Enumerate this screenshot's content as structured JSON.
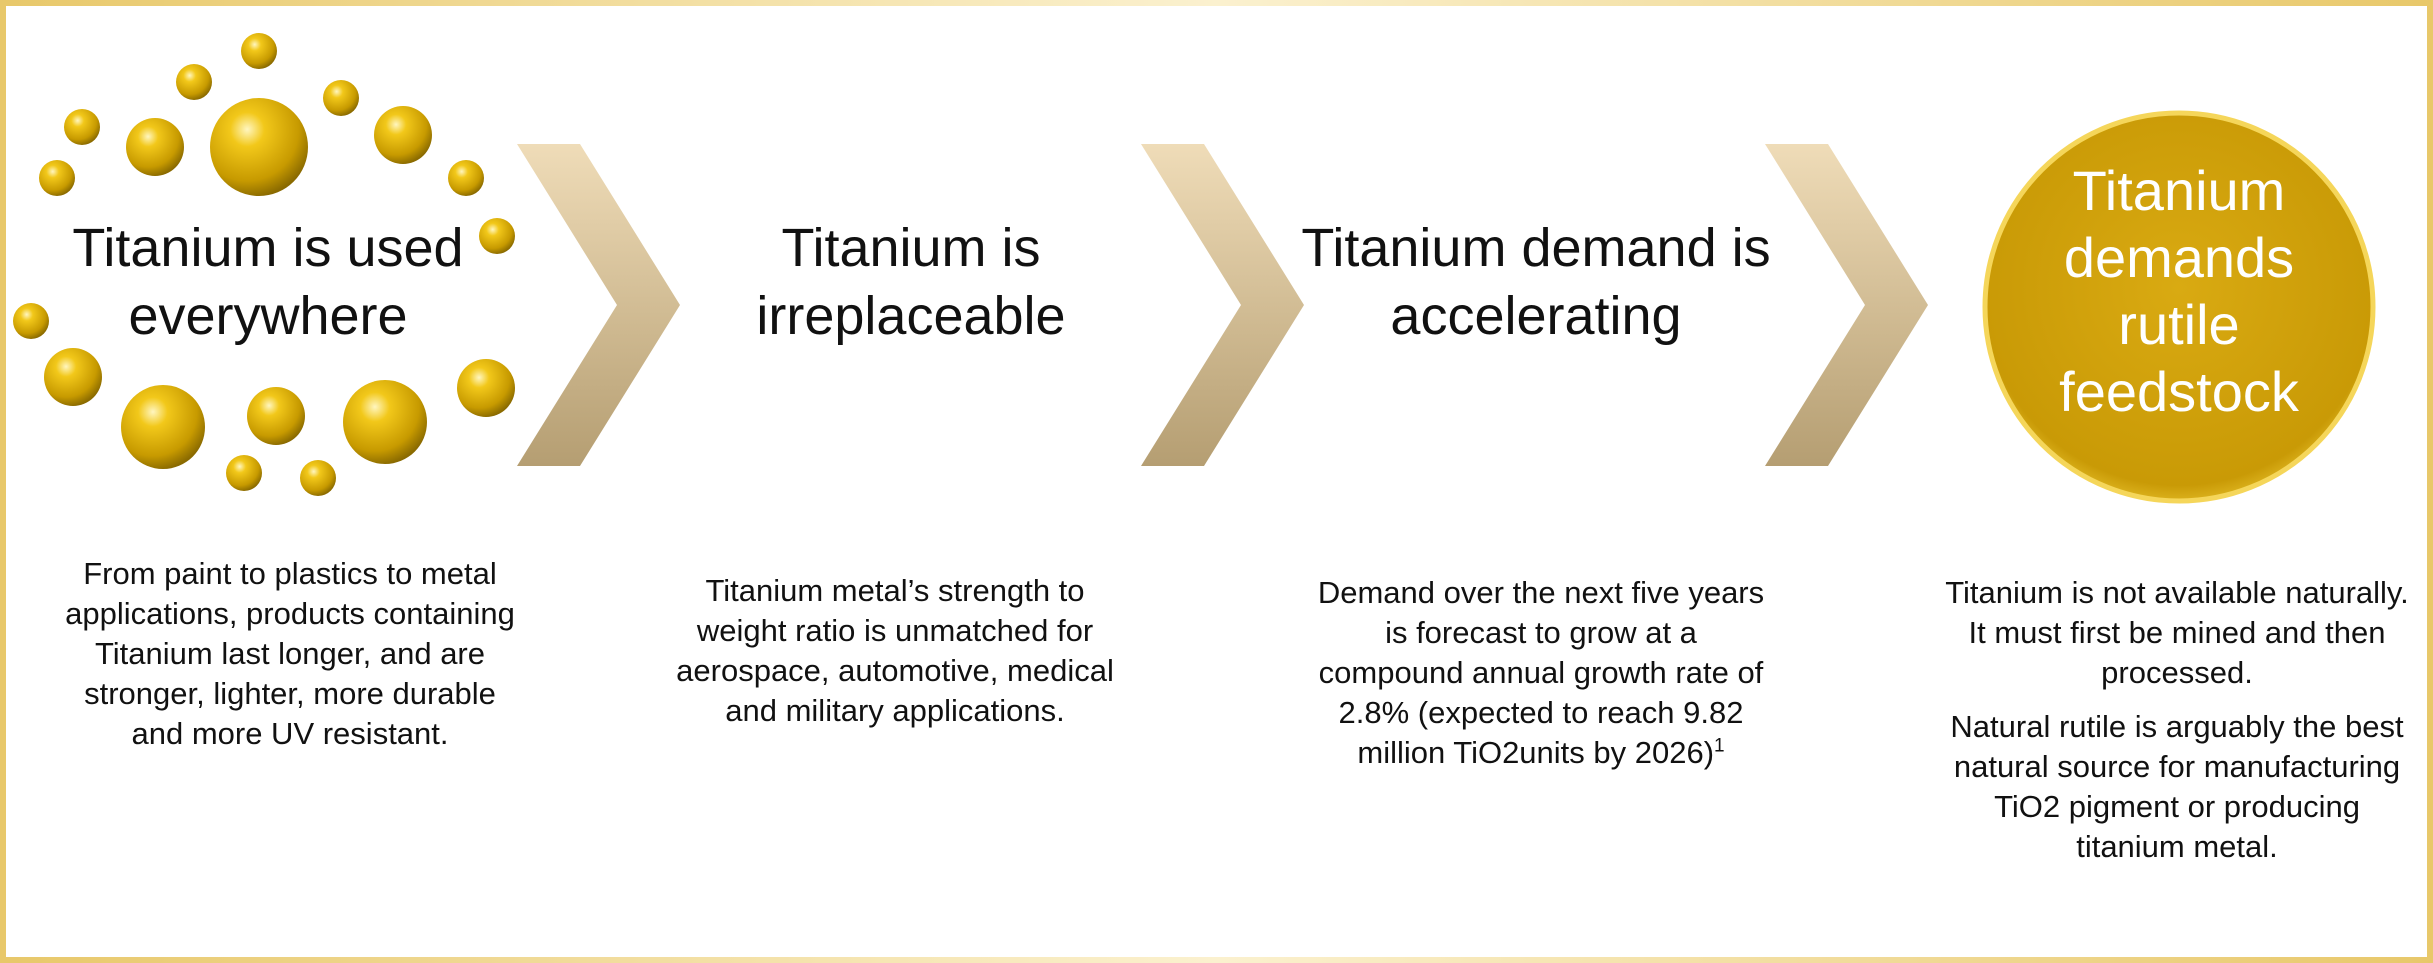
{
  "steps": [
    {
      "title": "Titanium is used everywhere",
      "description": [
        "From paint to plastics to metal applications, products containing Titanium last longer, and are stronger, lighter, more durable and more UV resistant."
      ]
    },
    {
      "title": "Titanium is irreplaceable",
      "description": [
        "Titanium metal’s strength to weight ratio is unmatched for aerospace, automotive, medical and military applications."
      ]
    },
    {
      "title": "Titanium demand is accelerating",
      "description": [
        "Demand over the next five years is forecast to grow at a compound annual growth rate of 2.8% (expected to reach 9.82 million TiO2units by 2026)"
      ],
      "footnote": "1"
    },
    {
      "title": "Titanium demands rutile feedstock",
      "description": [
        "Titanium is not available naturally. It must first be mined and then processed.",
        "Natural rutile is arguably the best natural source for manufacturing TiO2 pigment or producing titanium metal."
      ]
    }
  ]
}
